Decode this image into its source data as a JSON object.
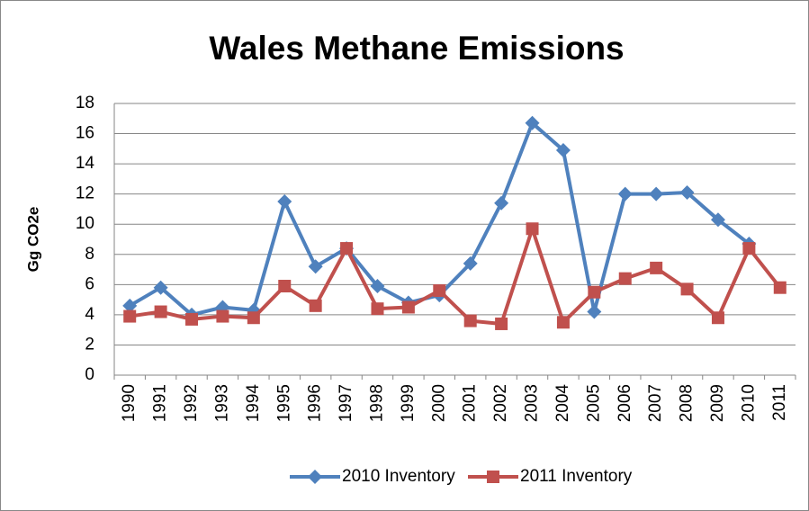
{
  "chart_data": {
    "type": "line",
    "title": "Wales Methane Emissions",
    "y_label": "Gg CO2e",
    "categories": [
      "1990",
      "1991",
      "1992",
      "1993",
      "1994",
      "1995",
      "1996",
      "1997",
      "1998",
      "1999",
      "2000",
      "2001",
      "2002",
      "2003",
      "2004",
      "2005",
      "2006",
      "2007",
      "2008",
      "2009",
      "2010",
      "2011"
    ],
    "series": [
      {
        "name": "2010 Inventory",
        "color": "#4f81bd",
        "marker": "diamond",
        "values": [
          4.6,
          5.8,
          4.0,
          4.5,
          4.3,
          11.5,
          7.2,
          8.4,
          5.9,
          4.8,
          5.3,
          7.4,
          11.4,
          16.7,
          14.9,
          4.2,
          12.0,
          12.0,
          12.1,
          10.3,
          8.7,
          null
        ]
      },
      {
        "name": "2011 Inventory",
        "color": "#c0504d",
        "marker": "square",
        "values": [
          3.9,
          4.2,
          3.7,
          3.9,
          3.8,
          5.9,
          4.6,
          8.4,
          4.4,
          4.5,
          5.6,
          3.6,
          3.4,
          9.7,
          3.5,
          5.5,
          6.4,
          7.1,
          5.7,
          3.8,
          8.4,
          5.8
        ]
      }
    ],
    "ylim": [
      0,
      18
    ],
    "yticks": [
      0,
      2,
      4,
      6,
      8,
      10,
      12,
      14,
      16,
      18
    ],
    "grid": true,
    "legend": "bottom"
  }
}
